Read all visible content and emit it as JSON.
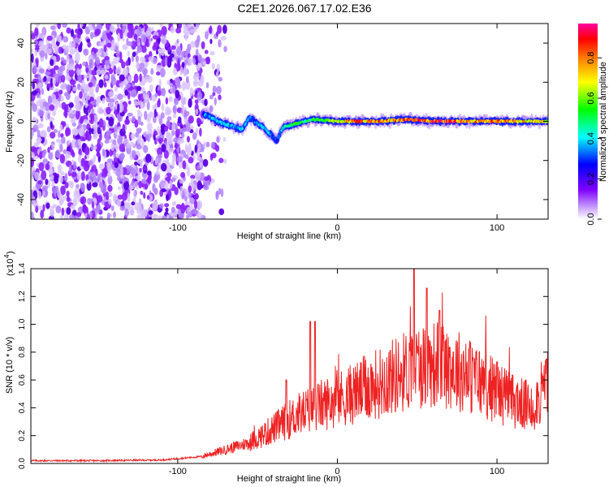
{
  "title": "C2E1.2026.067.17.02.E36",
  "colorbar": {
    "label": "Normalized spectral amplitude",
    "ticks": [
      0.0,
      0.2,
      0.4,
      0.6,
      0.8
    ],
    "tick_labels": [
      "0.0",
      "0.2",
      "0.4",
      "0.6",
      "0.8"
    ],
    "colors": [
      "#ffffff",
      "#8000ff",
      "#0000ff",
      "#00ffff",
      "#00ff00",
      "#ffff00",
      "#ff8000",
      "#ff0000",
      "#ff00a0"
    ]
  },
  "chart_data": [
    {
      "type": "heatmap",
      "name": "spectrogram",
      "xlabel": "Height of straight line (km)",
      "ylabel": "Frequency (Hz)",
      "xlim": [
        -192,
        132
      ],
      "ylim": [
        -50,
        50
      ],
      "xticks": [
        -100,
        0,
        100
      ],
      "xtick_labels": [
        "-100",
        "0",
        "100"
      ],
      "yticks": [
        -40,
        -20,
        0,
        20,
        40
      ],
      "ytick_labels": [
        "-40",
        "-20",
        "0",
        "20",
        "40"
      ],
      "noise_region_x": [
        -192,
        -84
      ],
      "signal_track": [
        {
          "x": -84,
          "y": 4,
          "amp": 0.35
        },
        {
          "x": -75,
          "y": 0,
          "amp": 0.45
        },
        {
          "x": -68,
          "y": -2,
          "amp": 0.4
        },
        {
          "x": -60,
          "y": -4,
          "amp": 0.4
        },
        {
          "x": -55,
          "y": 2,
          "amp": 0.35
        },
        {
          "x": -50,
          "y": -1,
          "amp": 0.4
        },
        {
          "x": -45,
          "y": -4,
          "amp": 0.45
        },
        {
          "x": -38,
          "y": -10,
          "amp": 0.3
        },
        {
          "x": -34,
          "y": -3,
          "amp": 0.5
        },
        {
          "x": -25,
          "y": -1,
          "amp": 0.55
        },
        {
          "x": -15,
          "y": 1,
          "amp": 0.55
        },
        {
          "x": 0,
          "y": 0,
          "amp": 0.7
        },
        {
          "x": 10,
          "y": 0,
          "amp": 0.9
        },
        {
          "x": 25,
          "y": 0,
          "amp": 0.85
        },
        {
          "x": 45,
          "y": 1,
          "amp": 0.9
        },
        {
          "x": 60,
          "y": 0,
          "amp": 0.95
        },
        {
          "x": 80,
          "y": 0,
          "amp": 0.9
        },
        {
          "x": 100,
          "y": 0,
          "amp": 0.85
        },
        {
          "x": 115,
          "y": 0,
          "amp": 0.8
        },
        {
          "x": 132,
          "y": 0,
          "amp": 0.75
        }
      ]
    },
    {
      "type": "line",
      "name": "snr",
      "xlabel": "Height of straight line (km)",
      "ylabel": "SNR (10 * v/v)",
      "scale_label": "(x10",
      "scale_exponent": "4",
      "xlim": [
        -192,
        132
      ],
      "ylim": [
        0.0,
        1.4
      ],
      "xticks": [
        -100,
        0,
        100
      ],
      "xtick_labels": [
        "-100",
        "0",
        "100"
      ],
      "yticks": [
        0.0,
        0.2,
        0.4,
        0.6,
        0.8,
        1.0,
        1.2,
        1.4
      ],
      "ytick_labels": [
        "0.0",
        "0.2",
        "0.4",
        "0.6",
        "0.8",
        "1.0",
        "1.2",
        "1.4"
      ],
      "color": "#ee2222",
      "envelope": [
        {
          "x": -192,
          "y": 0.02
        },
        {
          "x": -150,
          "y": 0.02
        },
        {
          "x": -110,
          "y": 0.025
        },
        {
          "x": -85,
          "y": 0.05
        },
        {
          "x": -70,
          "y": 0.1
        },
        {
          "x": -55,
          "y": 0.15
        },
        {
          "x": -40,
          "y": 0.25
        },
        {
          "x": -25,
          "y": 0.35
        },
        {
          "x": -10,
          "y": 0.42
        },
        {
          "x": 10,
          "y": 0.5
        },
        {
          "x": 30,
          "y": 0.6
        },
        {
          "x": 50,
          "y": 0.7
        },
        {
          "x": 65,
          "y": 0.72
        },
        {
          "x": 80,
          "y": 0.65
        },
        {
          "x": 95,
          "y": 0.55
        },
        {
          "x": 110,
          "y": 0.45
        },
        {
          "x": 122,
          "y": 0.4
        },
        {
          "x": 132,
          "y": 0.58
        }
      ],
      "peaks": [
        {
          "x": -32,
          "y": 0.6
        },
        {
          "x": -17,
          "y": 1.02
        },
        {
          "x": -14,
          "y": 1.02
        },
        {
          "x": 48,
          "y": 1.4
        },
        {
          "x": 56,
          "y": 1.26
        },
        {
          "x": 64,
          "y": 1.1
        },
        {
          "x": 100,
          "y": 0.73
        },
        {
          "x": 131,
          "y": 0.75
        }
      ]
    }
  ]
}
